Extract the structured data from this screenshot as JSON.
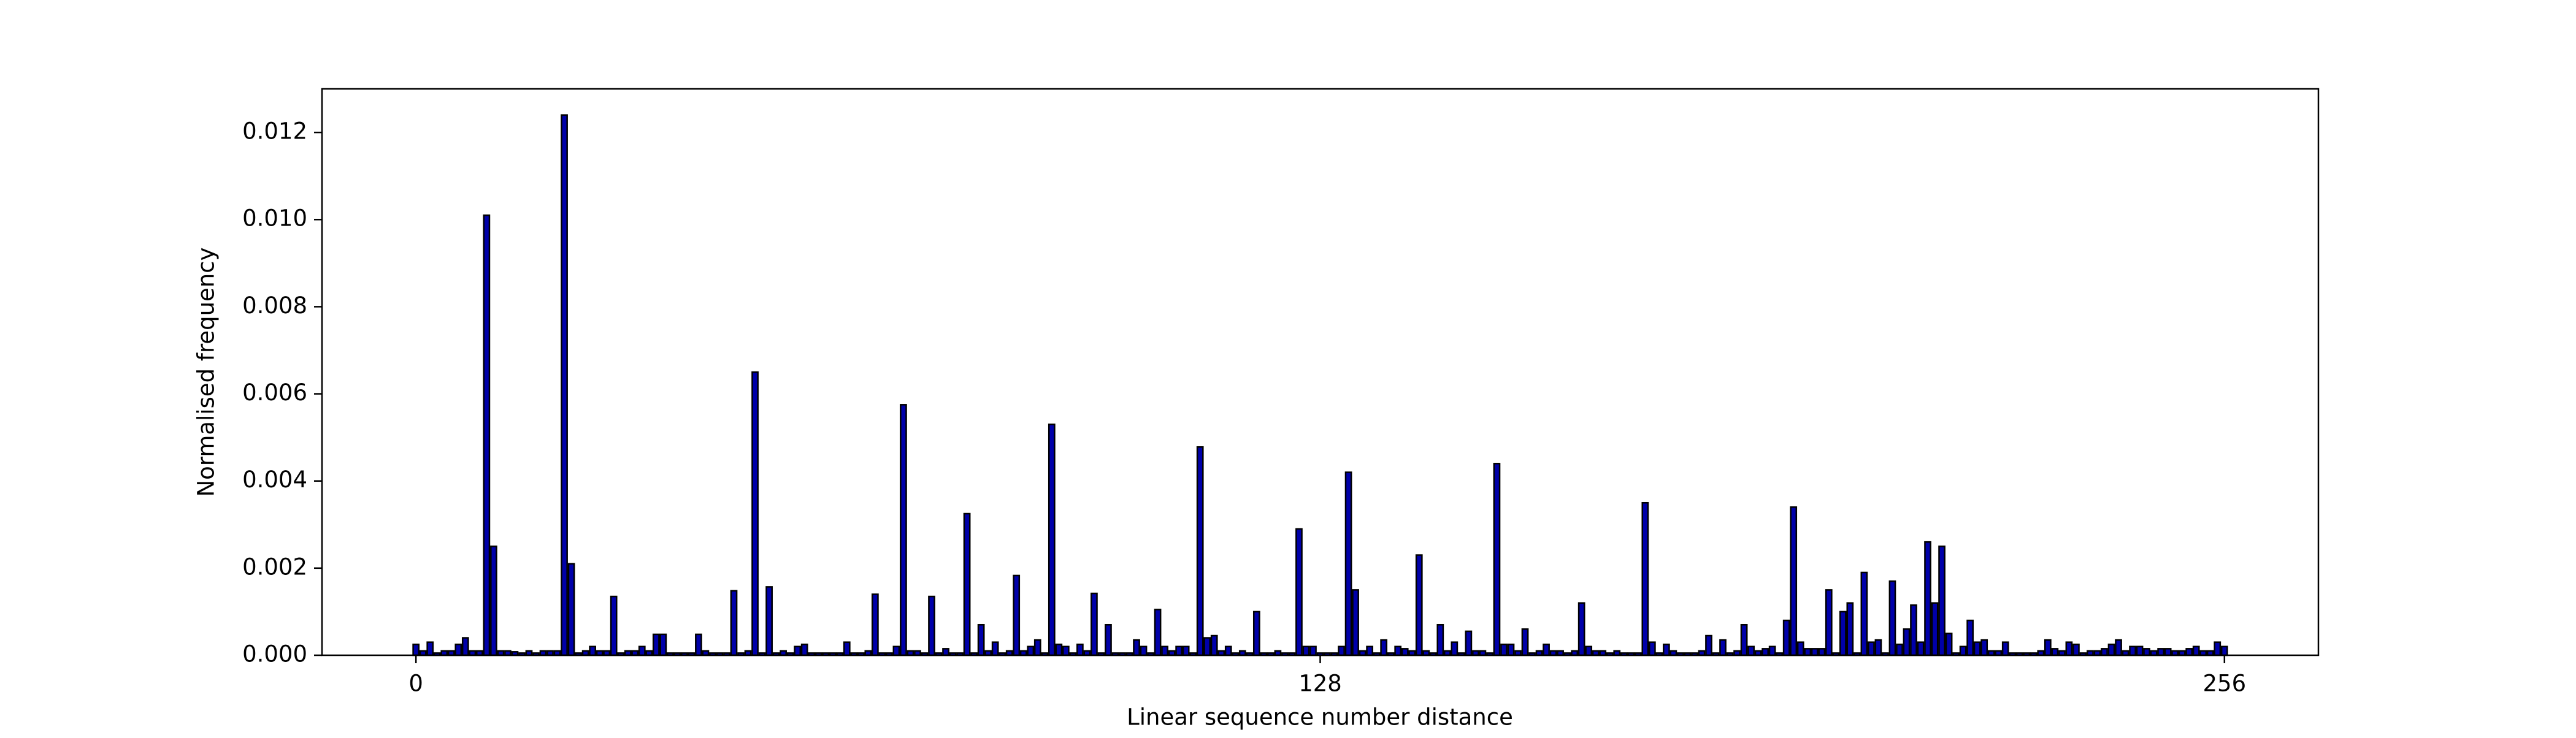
{
  "chart_data": {
    "type": "bar",
    "xlabel": "Linear sequence number distance",
    "ylabel": "Normalised frequency",
    "color": "#0000aa",
    "edgecolor": "#000000",
    "x": [
      0,
      1,
      2,
      3,
      4,
      5,
      6,
      7,
      8,
      9,
      10,
      11,
      12,
      13,
      14,
      15,
      16,
      17,
      18,
      19,
      20,
      21,
      22,
      23,
      24,
      25,
      26,
      27,
      28,
      29,
      30,
      31,
      32,
      33,
      34,
      35,
      36,
      37,
      38,
      39,
      40,
      41,
      42,
      43,
      44,
      45,
      46,
      47,
      48,
      49,
      50,
      51,
      52,
      53,
      54,
      55,
      56,
      57,
      58,
      59,
      60,
      61,
      62,
      63,
      64,
      65,
      66,
      67,
      68,
      69,
      70,
      71,
      72,
      73,
      74,
      75,
      76,
      77,
      78,
      79,
      80,
      81,
      82,
      83,
      84,
      85,
      86,
      87,
      88,
      89,
      90,
      91,
      92,
      93,
      94,
      95,
      96,
      97,
      98,
      99,
      100,
      101,
      102,
      103,
      104,
      105,
      106,
      107,
      108,
      109,
      110,
      111,
      112,
      113,
      114,
      115,
      116,
      117,
      118,
      119,
      120,
      121,
      122,
      123,
      124,
      125,
      126,
      127,
      128,
      129,
      130,
      131,
      132,
      133,
      134,
      135,
      136,
      137,
      138,
      139,
      140,
      141,
      142,
      143,
      144,
      145,
      146,
      147,
      148,
      149,
      150,
      151,
      152,
      153,
      154,
      155,
      156,
      157,
      158,
      159,
      160,
      161,
      162,
      163,
      164,
      165,
      166,
      167,
      168,
      169,
      170,
      171,
      172,
      173,
      174,
      175,
      176,
      177,
      178,
      179,
      180,
      181,
      182,
      183,
      184,
      185,
      186,
      187,
      188,
      189,
      190,
      191,
      192,
      193,
      194,
      195,
      196,
      197,
      198,
      199,
      200,
      201,
      202,
      203,
      204,
      205,
      206,
      207,
      208,
      209,
      210,
      211,
      212,
      213,
      214,
      215,
      216,
      217,
      218,
      219,
      220,
      221,
      222,
      223,
      224,
      225,
      226,
      227,
      228,
      229,
      230,
      231,
      232,
      233,
      234,
      235,
      236,
      237,
      238,
      239,
      240,
      241,
      242,
      243,
      244,
      245,
      246,
      247,
      248,
      249,
      250,
      251,
      252,
      253,
      254,
      255,
      256
    ],
    "values": [
      0.00025,
      0.0001,
      0.0003,
      5e-05,
      0.0001,
      0.0001,
      0.00025,
      0.0004,
      0.0001,
      0.0001,
      0.0101,
      0.0025,
      0.0001,
      0.0001,
      8e-05,
      5e-05,
      0.0001,
      5e-05,
      0.0001,
      0.0001,
      0.0001,
      0.0124,
      0.0021,
      5e-05,
      0.0001,
      0.0002,
      0.0001,
      0.0001,
      0.00135,
      5e-05,
      0.0001,
      0.0001,
      0.0002,
      0.0001,
      0.00048,
      0.00048,
      5e-05,
      5e-05,
      5e-05,
      5e-05,
      0.00048,
      0.0001,
      5e-05,
      5e-05,
      5e-05,
      0.00148,
      5e-05,
      0.0001,
      0.0065,
      5e-05,
      0.00157,
      5e-05,
      0.0001,
      5e-05,
      0.0002,
      0.00025,
      5e-05,
      5e-05,
      5e-05,
      5e-05,
      5e-05,
      0.0003,
      5e-05,
      5e-05,
      0.0001,
      0.0014,
      5e-05,
      5e-05,
      0.0002,
      0.00575,
      0.0001,
      0.0001,
      5e-05,
      0.00135,
      5e-05,
      0.00015,
      5e-05,
      5e-05,
      0.00325,
      5e-05,
      0.0007,
      0.0001,
      0.0003,
      5e-05,
      0.0001,
      0.00183,
      0.0001,
      0.0002,
      0.00035,
      5e-05,
      0.0053,
      0.00025,
      0.0002,
      5e-05,
      0.00025,
      0.0001,
      0.00142,
      5e-05,
      0.0007,
      5e-05,
      5e-05,
      5e-05,
      0.00035,
      0.0002,
      5e-05,
      0.00105,
      0.0002,
      0.0001,
      0.0002,
      0.0002,
      5e-05,
      0.00478,
      0.0004,
      0.00045,
      0.0001,
      0.0002,
      5e-05,
      0.0001,
      5e-05,
      0.001,
      5e-05,
      5e-05,
      0.0001,
      5e-05,
      5e-05,
      0.0029,
      0.0002,
      0.0002,
      5e-05,
      5e-05,
      5e-05,
      0.0002,
      0.0042,
      0.0015,
      0.0001,
      0.0002,
      5e-05,
      0.00035,
      5e-05,
      0.0002,
      0.00015,
      0.0001,
      0.0023,
      0.0001,
      5e-05,
      0.0007,
      0.0001,
      0.0003,
      5e-05,
      0.00055,
      0.0001,
      0.0001,
      5e-05,
      0.0044,
      0.00025,
      0.00025,
      0.0001,
      0.0006,
      5e-05,
      0.0001,
      0.00025,
      0.0001,
      0.0001,
      5e-05,
      0.0001,
      0.0012,
      0.0002,
      0.0001,
      0.0001,
      5e-05,
      0.0001,
      5e-05,
      5e-05,
      5e-05,
      0.0035,
      0.0003,
      5e-05,
      0.00025,
      0.0001,
      5e-05,
      5e-05,
      5e-05,
      0.0001,
      0.00045,
      5e-05,
      0.00035,
      5e-05,
      0.0001,
      0.0007,
      0.0002,
      0.0001,
      0.00015,
      0.0002,
      5e-05,
      0.0008,
      0.0034,
      0.0003,
      0.00015,
      0.00015,
      0.00015,
      0.0015,
      5e-05,
      0.001,
      0.0012,
      5e-05,
      0.0019,
      0.0003,
      0.00035,
      5e-05,
      0.0017,
      0.00025,
      0.0006,
      0.00115,
      0.0003,
      0.0026,
      0.0012,
      0.0025,
      0.0005,
      5e-05,
      0.0002,
      0.0008,
      0.0003,
      0.00035,
      0.0001,
      0.0001,
      0.0003,
      5e-05,
      5e-05,
      5e-05,
      5e-05,
      0.0001,
      0.00035,
      0.00015,
      0.0001,
      0.0003,
      0.00025,
      5e-05,
      0.0001,
      0.0001,
      0.00015,
      0.00025,
      0.00035,
      0.0001,
      0.0002,
      0.0002,
      0.00015,
      0.0001,
      0.00015,
      0.00015,
      0.0001,
      0.0001,
      0.00015,
      0.0002,
      0.0001,
      0.0001,
      0.0003,
      0.0002
    ],
    "xlim": [
      -13.3,
      269.3
    ],
    "ylim": [
      0,
      0.013
    ],
    "xticks": [
      0,
      128,
      256
    ],
    "yticks": [
      {
        "value": 0,
        "label": "0.000"
      },
      {
        "value": 0.002,
        "label": "0.002"
      },
      {
        "value": 0.004,
        "label": "0.004"
      },
      {
        "value": 0.006,
        "label": "0.006"
      },
      {
        "value": 0.008,
        "label": "0.008"
      },
      {
        "value": 0.01,
        "label": "0.010"
      },
      {
        "value": 0.012,
        "label": "0.012"
      }
    ]
  }
}
